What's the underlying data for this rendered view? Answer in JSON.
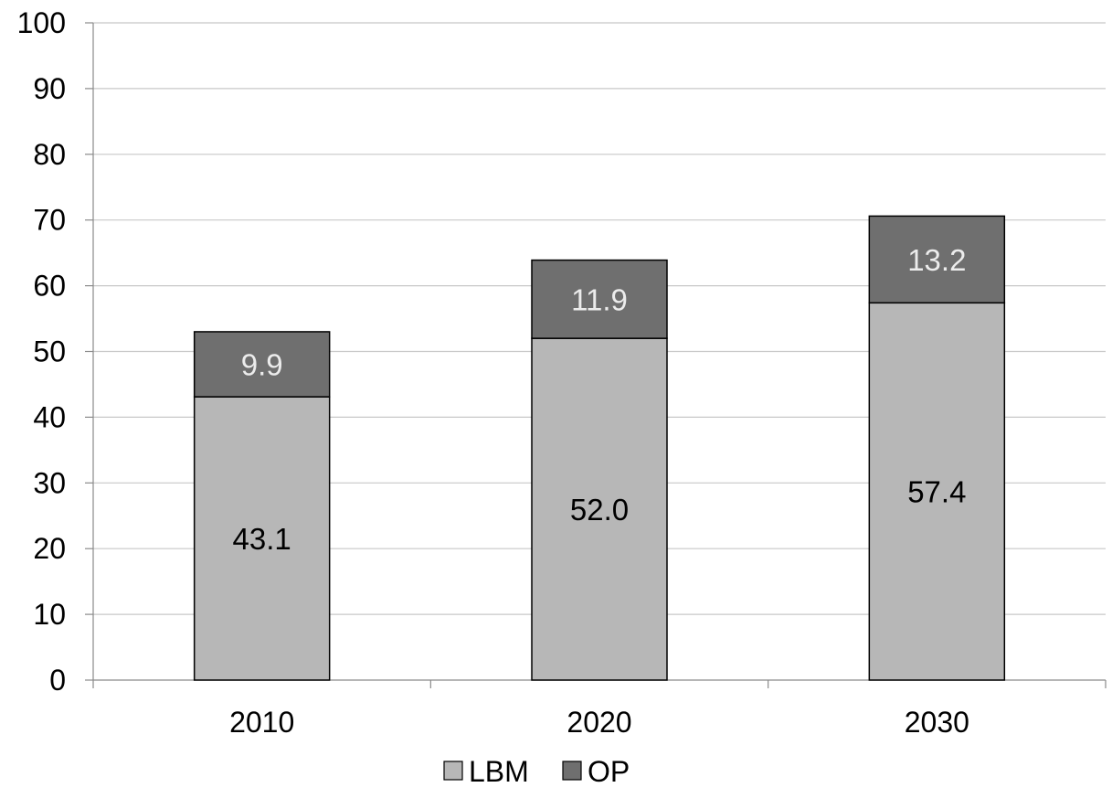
{
  "chart_data": {
    "type": "bar",
    "stacked": true,
    "categories": [
      "2010",
      "2020",
      "2030"
    ],
    "series": [
      {
        "name": "LBM",
        "values": [
          43.1,
          52.0,
          57.4
        ],
        "color": "#b7b7b7",
        "label_color": "#000000"
      },
      {
        "name": "OP",
        "values": [
          9.9,
          11.9,
          13.2
        ],
        "color": "#6f6f6f",
        "label_color": "#ececec"
      }
    ],
    "data_labels": [
      [
        "43.1",
        "52.0",
        "57.4"
      ],
      [
        "9.9",
        "11.9",
        "13.2"
      ]
    ],
    "ylim": [
      0,
      100
    ],
    "yticks": [
      0,
      10,
      20,
      30,
      40,
      50,
      60,
      70,
      80,
      90,
      100
    ],
    "grid": true,
    "gridline_color": "#c8c8c8",
    "legend_position": "bottom",
    "title": "",
    "xlabel": "",
    "ylabel": ""
  }
}
